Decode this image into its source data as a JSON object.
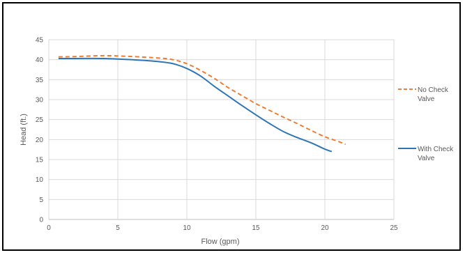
{
  "chart_data": {
    "type": "line",
    "title": "",
    "xlabel": "Flow (gpm)",
    "ylabel": "Head (ft.)",
    "xlim": [
      0,
      25
    ],
    "ylim": [
      0,
      45
    ],
    "x_ticks": [
      "0",
      "5",
      "10",
      "15",
      "20",
      "25"
    ],
    "y_ticks": [
      "0",
      "5",
      "10",
      "15",
      "20",
      "25",
      "30",
      "35",
      "40",
      "45"
    ],
    "grid": true,
    "legend_position": "right",
    "series": [
      {
        "name": "No Check Valve",
        "color": "#ED7D31",
        "style": "dashed",
        "legend_lines": [
          "No Check",
          "Valve"
        ],
        "x": [
          0.7,
          2,
          4,
          6,
          8,
          9,
          10,
          11,
          12,
          13,
          14,
          15,
          16,
          17,
          18,
          19,
          20,
          21,
          21.5
        ],
        "y": [
          40.7,
          40.8,
          41.0,
          40.8,
          40.4,
          40.0,
          39.0,
          37.3,
          35.3,
          33.0,
          31.0,
          29.0,
          27.3,
          25.6,
          24.0,
          22.3,
          20.7,
          19.5,
          18.8
        ]
      },
      {
        "name": "With Check Valve",
        "color": "#2E75B6",
        "style": "solid",
        "legend_lines": [
          "With Check",
          "Valve"
        ],
        "x": [
          0.7,
          2,
          4,
          6,
          8,
          9,
          10,
          11,
          12,
          13,
          14,
          15,
          16,
          17,
          18,
          19,
          20,
          20.5
        ],
        "y": [
          40.3,
          40.3,
          40.3,
          40.0,
          39.5,
          39.0,
          37.8,
          35.9,
          33.3,
          30.9,
          28.5,
          26.2,
          24.0,
          22.0,
          20.5,
          19.2,
          17.6,
          17.0
        ]
      }
    ]
  }
}
